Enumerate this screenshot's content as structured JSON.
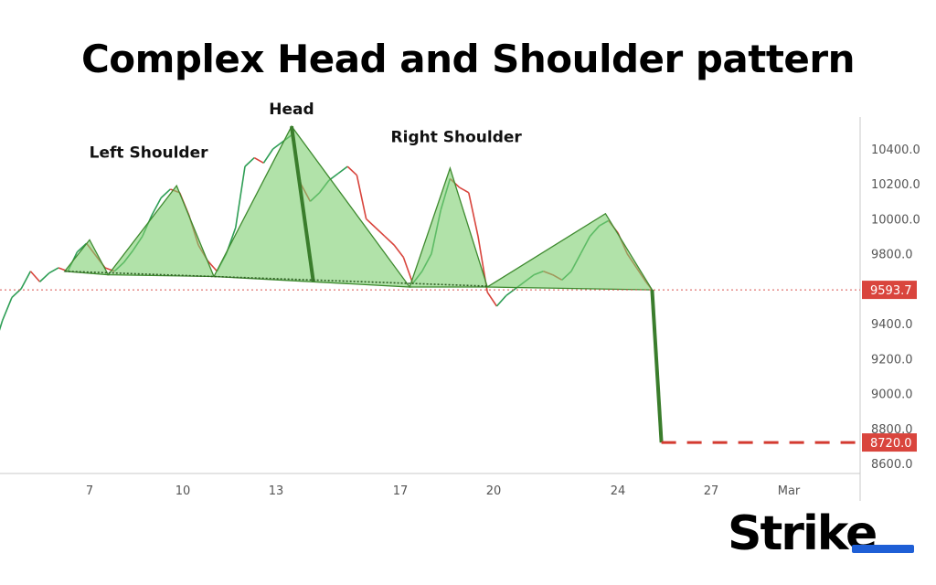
{
  "title": "Complex Head and Shoulder pattern",
  "brand": {
    "logo_text": "Strike",
    "accent": "#1f5fd6"
  },
  "chart_data": {
    "type": "line",
    "title": "Complex Head and Shoulder pattern",
    "x_ticks": [
      "7",
      "10",
      "13",
      "17",
      "20",
      "24",
      "27",
      "Mar"
    ],
    "y_ticks": [
      "10400.0",
      "10200.0",
      "10000.0",
      "9800.0",
      "9400.0",
      "9200.0",
      "9000.0",
      "8800.0",
      "8600.0"
    ],
    "ylim": [
      8550,
      10650
    ],
    "current_price": "9593.7",
    "target_price": "8720.0",
    "annotations": [
      "Left Shoulder",
      "Head",
      "Right Shoulder"
    ],
    "pattern_points": [
      {
        "x": 6.2,
        "y": 9700
      },
      {
        "x": 6.5,
        "y": 9690
      },
      {
        "x": 7.0,
        "y": 9880
      },
      {
        "x": 7.6,
        "y": 9680
      },
      {
        "x": 9.8,
        "y": 10190
      },
      {
        "x": 11.0,
        "y": 9670
      },
      {
        "x": 13.5,
        "y": 10530
      },
      {
        "x": 17.3,
        "y": 9610
      },
      {
        "x": 18.6,
        "y": 10290
      },
      {
        "x": 19.8,
        "y": 9610
      },
      {
        "x": 23.6,
        "y": 10030
      },
      {
        "x": 25.1,
        "y": 9593.7
      }
    ],
    "neckline": [
      {
        "x": 6.2,
        "y": 9700
      },
      {
        "x": 19.8,
        "y": 9615
      }
    ],
    "breakdown": [
      {
        "x": 25.1,
        "y": 9593.7
      },
      {
        "x": 25.4,
        "y": 8720
      }
    ],
    "price_path": [
      [
        3.0,
        9290
      ],
      [
        3.3,
        9130
      ],
      [
        3.6,
        9180
      ],
      [
        3.9,
        9250
      ],
      [
        4.2,
        9420
      ],
      [
        4.5,
        9550
      ],
      [
        4.8,
        9600
      ],
      [
        5.1,
        9700
      ],
      [
        5.4,
        9640
      ],
      [
        5.7,
        9690
      ],
      [
        6.0,
        9720
      ],
      [
        6.3,
        9700
      ],
      [
        6.6,
        9810
      ],
      [
        6.9,
        9860
      ],
      [
        7.2,
        9790
      ],
      [
        7.5,
        9720
      ],
      [
        7.8,
        9700
      ],
      [
        8.1,
        9750
      ],
      [
        8.4,
        9820
      ],
      [
        8.7,
        9900
      ],
      [
        9.0,
        10020
      ],
      [
        9.3,
        10120
      ],
      [
        9.6,
        10170
      ],
      [
        9.9,
        10150
      ],
      [
        10.2,
        10020
      ],
      [
        10.5,
        9850
      ],
      [
        10.8,
        9760
      ],
      [
        11.1,
        9700
      ],
      [
        11.4,
        9800
      ],
      [
        11.7,
        9950
      ],
      [
        12.0,
        10300
      ],
      [
        12.3,
        10350
      ],
      [
        12.6,
        10320
      ],
      [
        12.9,
        10400
      ],
      [
        13.2,
        10440
      ],
      [
        13.5,
        10480
      ],
      [
        13.8,
        10200
      ],
      [
        14.1,
        10100
      ],
      [
        14.4,
        10150
      ],
      [
        14.7,
        10220
      ],
      [
        15.0,
        10260
      ],
      [
        15.3,
        10300
      ],
      [
        15.6,
        10250
      ],
      [
        15.9,
        10000
      ],
      [
        16.2,
        9950
      ],
      [
        16.5,
        9900
      ],
      [
        16.8,
        9850
      ],
      [
        17.1,
        9780
      ],
      [
        17.4,
        9630
      ],
      [
        17.7,
        9700
      ],
      [
        18.0,
        9800
      ],
      [
        18.3,
        10050
      ],
      [
        18.6,
        10230
      ],
      [
        18.9,
        10180
      ],
      [
        19.2,
        10150
      ],
      [
        19.5,
        9900
      ],
      [
        19.8,
        9580
      ],
      [
        20.1,
        9500
      ],
      [
        20.4,
        9560
      ],
      [
        20.7,
        9600
      ],
      [
        21.0,
        9640
      ],
      [
        21.3,
        9680
      ],
      [
        21.6,
        9700
      ],
      [
        21.9,
        9680
      ],
      [
        22.2,
        9650
      ],
      [
        22.5,
        9700
      ],
      [
        22.8,
        9800
      ],
      [
        23.1,
        9900
      ],
      [
        23.4,
        9960
      ],
      [
        23.7,
        9990
      ],
      [
        24.0,
        9920
      ],
      [
        24.3,
        9800
      ],
      [
        24.6,
        9720
      ],
      [
        24.9,
        9640
      ],
      [
        25.1,
        9593.7
      ]
    ],
    "colors": {
      "pattern_fill": "#7dcf6f",
      "pattern_stroke": "#3e8a2f",
      "candle_up": "#2e9e55",
      "candle_down": "#d8443c",
      "target_line": "#d33a30"
    }
  }
}
